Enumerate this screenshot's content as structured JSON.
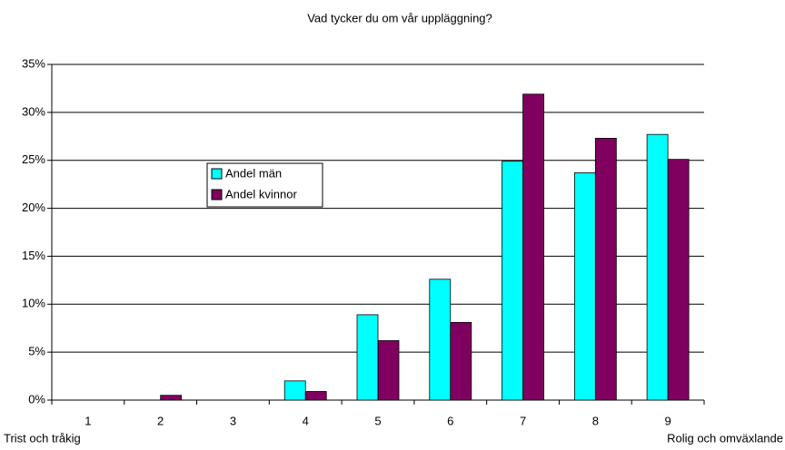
{
  "chart_data": {
    "type": "bar",
    "title": "Vad tycker du om vår uppläggning?",
    "categories": [
      "1",
      "2",
      "3",
      "4",
      "5",
      "6",
      "7",
      "8",
      "9"
    ],
    "series": [
      {
        "name": "Andel män",
        "color": "#00ffff",
        "values": [
          0,
          0,
          0,
          2.0,
          8.9,
          12.6,
          24.9,
          23.7,
          27.7
        ]
      },
      {
        "name": "Andel kvinnor",
        "color": "#800060",
        "values": [
          0,
          0.5,
          0,
          0.9,
          6.2,
          8.1,
          31.9,
          27.3,
          25.1
        ]
      }
    ],
    "ylim": [
      0,
      35
    ],
    "yticks": [
      {
        "value": 0,
        "label": "0%"
      },
      {
        "value": 5,
        "label": "5%"
      },
      {
        "value": 10,
        "label": "10%"
      },
      {
        "value": 15,
        "label": "15%"
      },
      {
        "value": 20,
        "label": "20%"
      },
      {
        "value": 25,
        "label": "25%"
      },
      {
        "value": 30,
        "label": "30%"
      },
      {
        "value": 35,
        "label": "35%"
      }
    ],
    "grid": true,
    "annotations": [
      "Trist och tråkig",
      "Rolig och omväxlande"
    ]
  }
}
